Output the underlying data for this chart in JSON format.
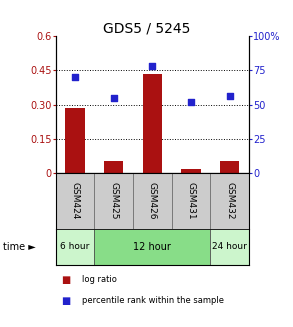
{
  "title": "GDS5 / 5245",
  "samples": [
    "GSM424",
    "GSM425",
    "GSM426",
    "GSM431",
    "GSM432"
  ],
  "log_ratio": [
    0.285,
    0.052,
    0.435,
    0.018,
    0.055
  ],
  "percentile_rank": [
    70.0,
    55.0,
    78.0,
    52.0,
    56.0
  ],
  "left_ylim": [
    0,
    0.6
  ],
  "right_ylim": [
    0,
    100
  ],
  "left_yticks": [
    0,
    0.15,
    0.3,
    0.45,
    0.6
  ],
  "left_yticklabels": [
    "0",
    "0.15",
    "0.30",
    "0.45",
    "0.6"
  ],
  "right_yticks": [
    0,
    25,
    50,
    75,
    100
  ],
  "right_yticklabels": [
    "0",
    "25",
    "50",
    "75",
    "100%"
  ],
  "grid_yticks": [
    0.15,
    0.3,
    0.45
  ],
  "bar_color": "#aa1111",
  "scatter_color": "#2222cc",
  "time_groups": [
    {
      "label": "6 hour",
      "indices": [
        0
      ],
      "color": "#ccf5cc"
    },
    {
      "label": "12 hour",
      "indices": [
        1,
        2,
        3
      ],
      "color": "#88dd88"
    },
    {
      "label": "24 hour",
      "indices": [
        4
      ],
      "color": "#ccf5cc"
    }
  ],
  "legend_bar_label": "log ratio",
  "legend_scatter_label": "percentile rank within the sample",
  "time_label": "time ►",
  "title_fontsize": 10,
  "tick_fontsize": 7,
  "sample_label_fontsize": 6.5,
  "time_fontsize": 7,
  "legend_fontsize": 6,
  "background_color": "#ffffff"
}
